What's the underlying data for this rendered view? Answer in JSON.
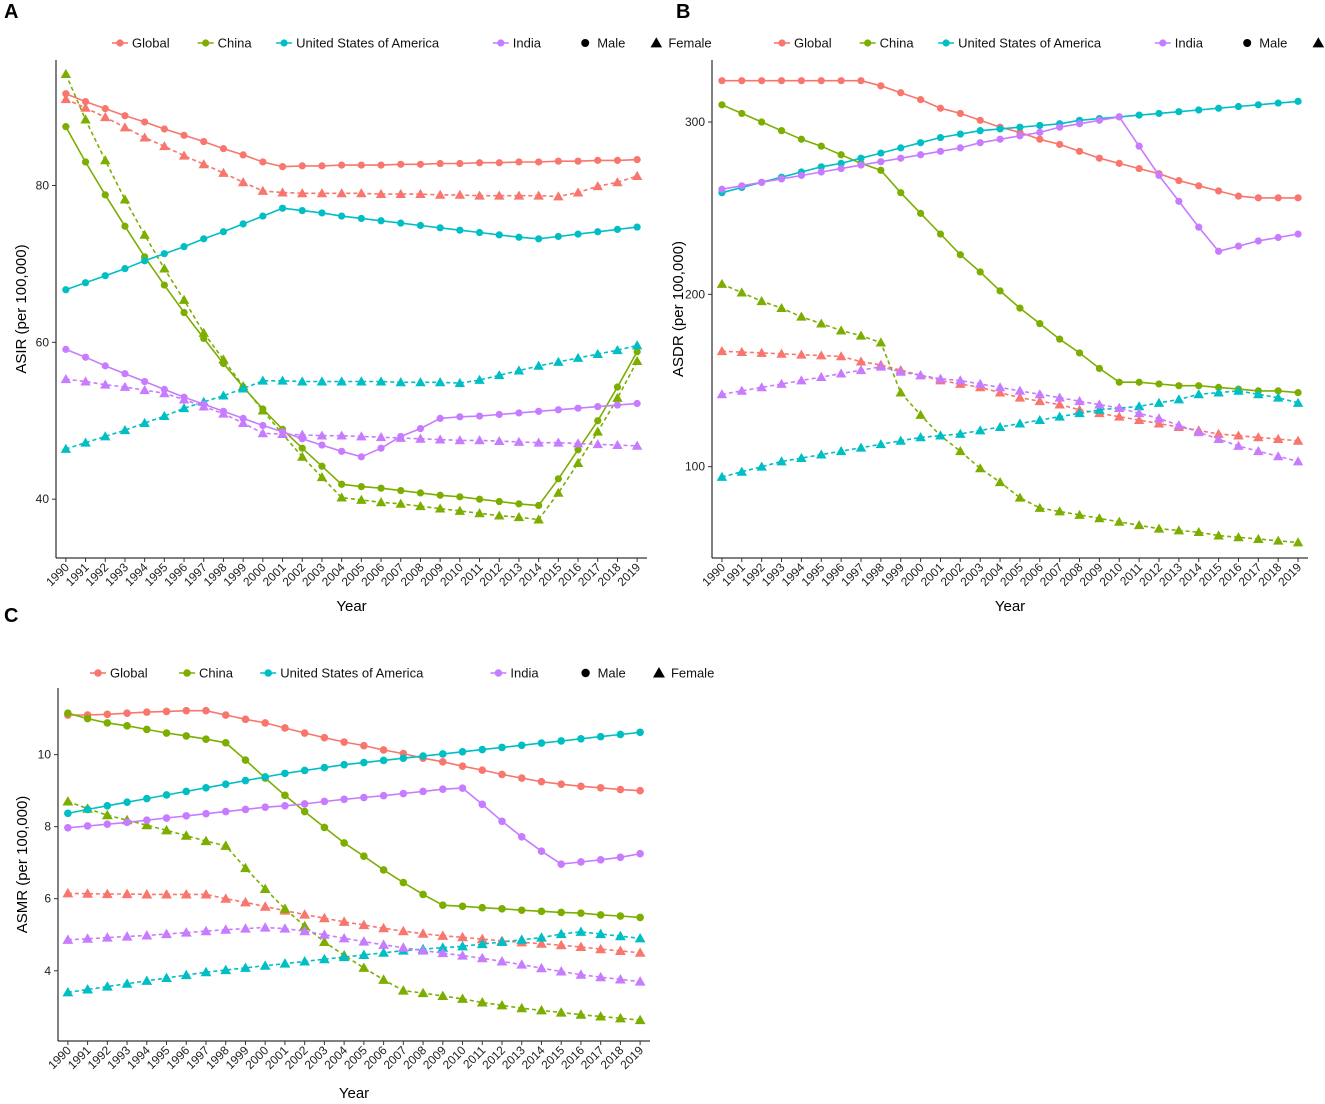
{
  "legend": {
    "series": [
      {
        "name": "Global",
        "color": "#F8766D"
      },
      {
        "name": "China",
        "color": "#7CAE00"
      },
      {
        "name": "United States of America",
        "color": "#00BFC4"
      },
      {
        "name": "India",
        "color": "#C77CFF"
      }
    ],
    "sex": [
      {
        "name": "Male",
        "marker": "circle",
        "line": "solid"
      },
      {
        "name": "Female",
        "marker": "triangle",
        "line": "dashed"
      }
    ]
  },
  "chart_data": [
    {
      "panel": "A",
      "type": "line",
      "xlabel": "Year",
      "ylabel": "ASIR (per 100,000)",
      "ylim": [
        32.5,
        96
      ],
      "yticks": [
        40,
        60,
        80
      ],
      "x": [
        1990,
        1991,
        1992,
        1993,
        1994,
        1995,
        1996,
        1997,
        1998,
        1999,
        2000,
        2001,
        2002,
        2003,
        2004,
        2005,
        2006,
        2007,
        2008,
        2009,
        2010,
        2011,
        2012,
        2013,
        2014,
        2015,
        2016,
        2017,
        2018,
        2019
      ],
      "series": [
        {
          "name": "Global",
          "sex": "Male",
          "values": [
            91.7,
            90.7,
            89.8,
            88.9,
            88.1,
            87.2,
            86.4,
            85.6,
            84.7,
            83.9,
            83.0,
            82.4,
            82.5,
            82.5,
            82.6,
            82.6,
            82.6,
            82.7,
            82.7,
            82.8,
            82.8,
            82.9,
            82.9,
            83.0,
            83.0,
            83.1,
            83.1,
            83.2,
            83.2,
            83.3
          ]
        },
        {
          "name": "Global",
          "sex": "Female",
          "values": [
            91.0,
            89.9,
            88.7,
            87.4,
            86.1,
            85.0,
            83.8,
            82.7,
            81.6,
            80.4,
            79.3,
            79.1,
            79.0,
            79.0,
            79.0,
            79.0,
            78.9,
            78.9,
            78.9,
            78.8,
            78.8,
            78.7,
            78.7,
            78.7,
            78.7,
            78.6,
            79.1,
            79.9,
            80.4,
            81.2
          ]
        },
        {
          "name": "China",
          "sex": "Male",
          "values": [
            87.5,
            83.0,
            78.8,
            74.8,
            70.9,
            67.3,
            63.8,
            60.5,
            57.3,
            54.3,
            51.5,
            48.9,
            46.5,
            44.2,
            41.9,
            41.6,
            41.4,
            41.1,
            40.8,
            40.5,
            40.3,
            40.0,
            39.7,
            39.4,
            39.2,
            42.6,
            46.3,
            50.0,
            54.3,
            58.8
          ]
        },
        {
          "name": "China",
          "sex": "Female",
          "values": [
            94.2,
            88.4,
            83.2,
            78.2,
            73.7,
            69.4,
            65.4,
            61.2,
            57.8,
            54.4,
            51.3,
            48.3,
            45.4,
            42.8,
            40.2,
            39.9,
            39.6,
            39.4,
            39.1,
            38.8,
            38.5,
            38.2,
            37.9,
            37.7,
            37.4,
            40.8,
            44.6,
            48.6,
            52.9,
            57.6
          ]
        },
        {
          "name": "United States of America",
          "sex": "Male",
          "values": [
            66.7,
            67.6,
            68.5,
            69.4,
            70.4,
            71.3,
            72.2,
            73.2,
            74.1,
            75.1,
            76.1,
            77.1,
            76.8,
            76.5,
            76.1,
            75.8,
            75.5,
            75.2,
            74.9,
            74.6,
            74.3,
            74.0,
            73.7,
            73.4,
            73.2,
            73.5,
            73.8,
            74.1,
            74.4,
            74.7
          ]
        },
        {
          "name": "United States of America",
          "sex": "Female",
          "values": [
            46.4,
            47.2,
            48.0,
            48.8,
            49.7,
            50.6,
            51.6,
            52.4,
            53.2,
            54.1,
            55.1,
            55.1,
            55.0,
            55.0,
            55.0,
            55.0,
            55.0,
            54.9,
            54.9,
            54.9,
            54.8,
            55.2,
            55.8,
            56.4,
            57.0,
            57.5,
            58.0,
            58.5,
            59.0,
            59.6
          ]
        },
        {
          "name": "India",
          "sex": "Male",
          "values": [
            59.1,
            58.1,
            57.0,
            56.0,
            55.0,
            54.0,
            53.0,
            52.1,
            51.2,
            50.3,
            49.4,
            48.6,
            47.7,
            46.9,
            46.1,
            45.4,
            46.5,
            48.0,
            49.0,
            50.3,
            50.5,
            50.6,
            50.8,
            51.0,
            51.2,
            51.4,
            51.6,
            51.8,
            52.0,
            52.2
          ]
        },
        {
          "name": "India",
          "sex": "Female",
          "values": [
            55.3,
            55.0,
            54.6,
            54.3,
            53.9,
            53.5,
            52.7,
            51.8,
            50.9,
            49.7,
            48.4,
            48.3,
            48.2,
            48.1,
            48.1,
            48.0,
            47.9,
            47.8,
            47.7,
            47.6,
            47.5,
            47.5,
            47.4,
            47.3,
            47.2,
            47.2,
            47.1,
            47.0,
            46.9,
            46.8
          ]
        }
      ]
    },
    {
      "panel": "B",
      "type": "line",
      "xlabel": "Year",
      "ylabel": "ASDR (per 100,000)",
      "ylim": [
        47,
        336
      ],
      "yticks": [
        100,
        200,
        300
      ],
      "x": [
        1990,
        1991,
        1992,
        1993,
        1994,
        1995,
        1996,
        1997,
        1998,
        1999,
        2000,
        2001,
        2002,
        2003,
        2004,
        2005,
        2006,
        2007,
        2008,
        2009,
        2010,
        2011,
        2012,
        2013,
        2014,
        2015,
        2016,
        2017,
        2018,
        2019
      ],
      "series": [
        {
          "name": "Global",
          "sex": "Male",
          "values": [
            324,
            324,
            324,
            324,
            324,
            324,
            324,
            324,
            321,
            317,
            313,
            308,
            305,
            301,
            297,
            294,
            290,
            287,
            283,
            279,
            276,
            273,
            270,
            266,
            263,
            260,
            257,
            256,
            256,
            256
          ]
        },
        {
          "name": "Global",
          "sex": "Female",
          "values": [
            167,
            166.5,
            166,
            165.5,
            165,
            164.5,
            164,
            161,
            159,
            156,
            153,
            150,
            148,
            146,
            143,
            140,
            138,
            136,
            133,
            131,
            129,
            127,
            125,
            123,
            121,
            119,
            118,
            117,
            116,
            115
          ]
        },
        {
          "name": "China",
          "sex": "Male",
          "values": [
            310,
            305,
            300,
            295,
            290,
            286,
            281,
            276,
            272,
            259,
            247,
            235,
            223,
            213,
            202,
            192,
            183,
            174,
            166,
            157,
            149,
            149,
            148,
            147,
            147,
            146,
            145,
            144,
            144,
            143
          ]
        },
        {
          "name": "China",
          "sex": "Female",
          "values": [
            206,
            201,
            196,
            192,
            187,
            183,
            179,
            176,
            172,
            143,
            130,
            118,
            109,
            99,
            91,
            82,
            76,
            74,
            72,
            70,
            68,
            66,
            64,
            63,
            62,
            60,
            59,
            58,
            57,
            56
          ]
        },
        {
          "name": "United States of America",
          "sex": "Male",
          "values": [
            259,
            262,
            265,
            268,
            271,
            274,
            276,
            279,
            282,
            285,
            288,
            291,
            293,
            295,
            296,
            297,
            298,
            299,
            301,
            302,
            303,
            304,
            305,
            306,
            307,
            308,
            309,
            310,
            311,
            312
          ]
        },
        {
          "name": "United States of America",
          "sex": "Female",
          "values": [
            94,
            97,
            100,
            103,
            105,
            107,
            109,
            111,
            113,
            115,
            117,
            118,
            119,
            121,
            123,
            125,
            127,
            129,
            131,
            133,
            134,
            135,
            137,
            139,
            142,
            143,
            144,
            142,
            140,
            137
          ]
        },
        {
          "name": "India",
          "sex": "Male",
          "values": [
            261,
            263,
            265,
            267,
            269,
            271,
            273,
            275,
            277,
            279,
            281,
            283,
            285,
            288,
            290,
            292,
            294,
            297,
            299,
            301,
            303,
            286,
            269,
            254,
            239,
            225,
            228,
            231,
            233,
            235
          ]
        },
        {
          "name": "India",
          "sex": "Female",
          "values": [
            142,
            144,
            146,
            148,
            150,
            152,
            154,
            156,
            158,
            155,
            153,
            151,
            150,
            148,
            146,
            144,
            142,
            140,
            138,
            136,
            134,
            131,
            128,
            124,
            120,
            116,
            112,
            109,
            106,
            103
          ]
        }
      ]
    },
    {
      "panel": "C",
      "type": "line",
      "xlabel": "Year",
      "ylabel": "ASMR (per 100,000)",
      "ylim": [
        2.05,
        11.85
      ],
      "yticks": [
        4,
        6,
        8,
        10
      ],
      "x": [
        1990,
        1991,
        1992,
        1993,
        1994,
        1995,
        1996,
        1997,
        1998,
        1999,
        2000,
        2001,
        2002,
        2003,
        2004,
        2005,
        2006,
        2007,
        2008,
        2009,
        2010,
        2011,
        2012,
        2013,
        2014,
        2015,
        2016,
        2017,
        2018,
        2019
      ],
      "series": [
        {
          "name": "Global",
          "sex": "Male",
          "values": [
            11.1,
            11.1,
            11.12,
            11.15,
            11.18,
            11.2,
            11.22,
            11.22,
            11.1,
            10.98,
            10.88,
            10.74,
            10.6,
            10.47,
            10.35,
            10.25,
            10.13,
            10.03,
            9.9,
            9.8,
            9.68,
            9.57,
            9.45,
            9.35,
            9.25,
            9.18,
            9.12,
            9.08,
            9.03,
            9.0
          ]
        },
        {
          "name": "Global",
          "sex": "Female",
          "values": [
            6.15,
            6.14,
            6.13,
            6.13,
            6.12,
            6.12,
            6.12,
            6.12,
            6.0,
            5.9,
            5.78,
            5.67,
            5.56,
            5.46,
            5.36,
            5.27,
            5.18,
            5.1,
            5.03,
            4.97,
            4.93,
            4.88,
            4.83,
            4.79,
            4.75,
            4.71,
            4.66,
            4.6,
            4.55,
            4.5
          ]
        },
        {
          "name": "China",
          "sex": "Male",
          "values": [
            11.15,
            11.0,
            10.88,
            10.8,
            10.7,
            10.6,
            10.52,
            10.43,
            10.33,
            9.85,
            9.35,
            8.87,
            8.42,
            7.98,
            7.55,
            7.18,
            6.8,
            6.45,
            6.12,
            5.82,
            5.79,
            5.75,
            5.72,
            5.68,
            5.65,
            5.62,
            5.6,
            5.55,
            5.52,
            5.48
          ]
        },
        {
          "name": "China",
          "sex": "Female",
          "values": [
            8.7,
            8.5,
            8.32,
            8.18,
            8.04,
            7.9,
            7.75,
            7.6,
            7.47,
            6.85,
            6.27,
            5.72,
            5.24,
            4.8,
            4.43,
            4.08,
            3.75,
            3.45,
            3.38,
            3.3,
            3.22,
            3.12,
            3.04,
            2.96,
            2.9,
            2.84,
            2.78,
            2.73,
            2.68,
            2.63
          ]
        },
        {
          "name": "United States of America",
          "sex": "Male",
          "values": [
            8.37,
            8.48,
            8.58,
            8.68,
            8.78,
            8.88,
            8.98,
            9.08,
            9.18,
            9.28,
            9.38,
            9.48,
            9.56,
            9.64,
            9.72,
            9.78,
            9.84,
            9.9,
            9.96,
            10.02,
            10.08,
            10.14,
            10.2,
            10.26,
            10.32,
            10.38,
            10.44,
            10.5,
            10.56,
            10.62
          ]
        },
        {
          "name": "United States of America",
          "sex": "Female",
          "values": [
            3.4,
            3.48,
            3.56,
            3.64,
            3.72,
            3.8,
            3.88,
            3.96,
            4.02,
            4.08,
            4.14,
            4.2,
            4.26,
            4.32,
            4.38,
            4.44,
            4.5,
            4.56,
            4.6,
            4.64,
            4.68,
            4.74,
            4.8,
            4.86,
            4.92,
            5.02,
            5.08,
            5.02,
            4.96,
            4.9
          ]
        },
        {
          "name": "India",
          "sex": "Male",
          "values": [
            7.97,
            8.02,
            8.07,
            8.12,
            8.18,
            8.24,
            8.3,
            8.36,
            8.42,
            8.48,
            8.54,
            8.58,
            8.63,
            8.7,
            8.76,
            8.81,
            8.86,
            8.92,
            8.98,
            9.04,
            9.07,
            8.62,
            8.15,
            7.72,
            7.32,
            6.96,
            7.02,
            7.08,
            7.15,
            7.25
          ]
        },
        {
          "name": "India",
          "sex": "Female",
          "values": [
            4.86,
            4.89,
            4.92,
            4.95,
            4.98,
            5.02,
            5.06,
            5.1,
            5.14,
            5.17,
            5.2,
            5.17,
            5.1,
            5.0,
            4.9,
            4.81,
            4.72,
            4.64,
            4.56,
            4.49,
            4.42,
            4.35,
            4.26,
            4.17,
            4.07,
            3.98,
            3.89,
            3.82,
            3.76,
            3.7
          ]
        }
      ]
    }
  ]
}
